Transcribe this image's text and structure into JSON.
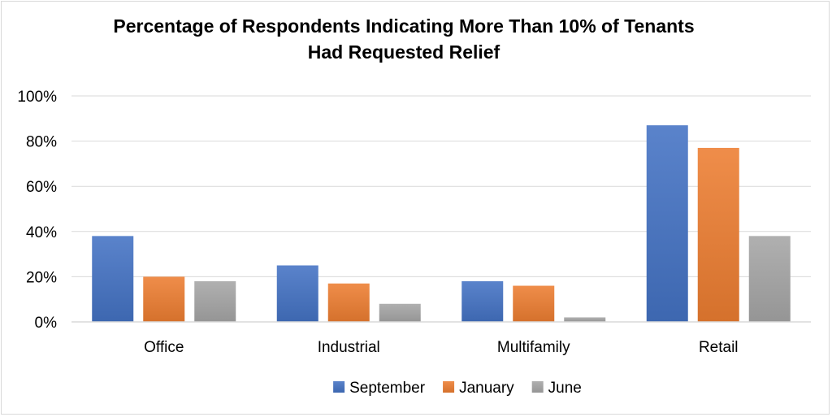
{
  "chart_data": {
    "type": "bar",
    "title_lines": [
      "Percentage of Respondents Indicating More Than 10% of Tenants",
      "Had Requested Relief"
    ],
    "categories": [
      "Office",
      "Industrial",
      "Multifamily",
      "Retail"
    ],
    "series": [
      {
        "name": "September",
        "values": [
          38,
          25,
          18,
          87
        ],
        "color": "#4472c4"
      },
      {
        "name": "January",
        "values": [
          20,
          17,
          16,
          77
        ],
        "color": "#ed7d31"
      },
      {
        "name": "June",
        "values": [
          18,
          8,
          2,
          38
        ],
        "color": "#a5a5a5"
      }
    ],
    "ylim": [
      0,
      100
    ],
    "yticks": [
      "0%",
      "20%",
      "40%",
      "60%",
      "80%",
      "100%"
    ],
    "grid": true,
    "legend_position": "bottom"
  }
}
